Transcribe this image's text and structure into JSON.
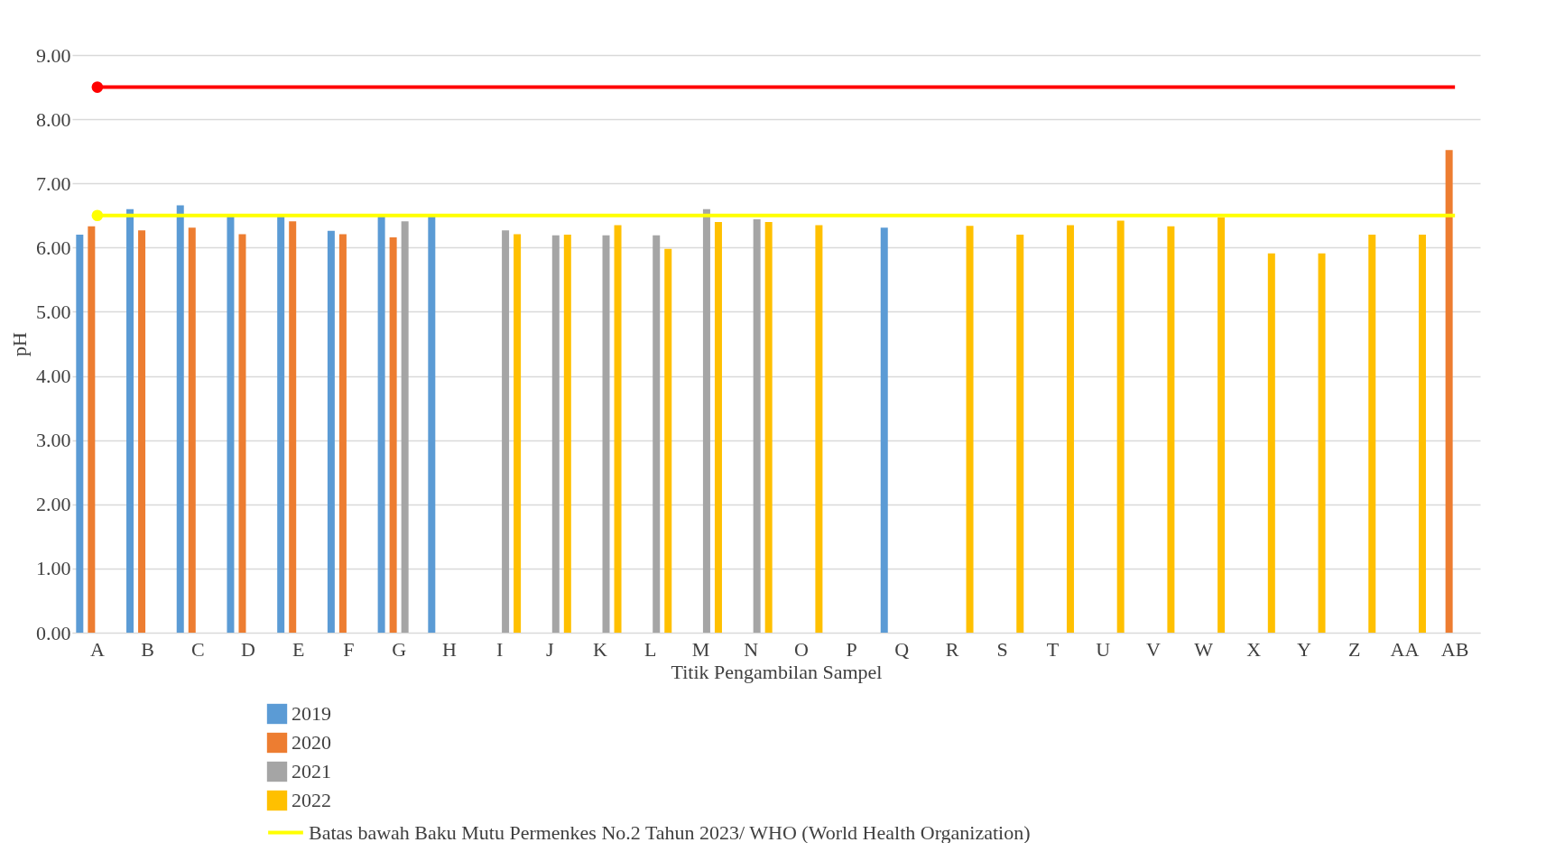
{
  "chart_data": {
    "type": "bar",
    "xlabel": "Titik Pengambilan Sampel",
    "ylabel": "pH",
    "categories": [
      "A",
      "B",
      "C",
      "D",
      "E",
      "F",
      "G",
      "H",
      "I",
      "J",
      "K",
      "L",
      "M",
      "N",
      "O",
      "P",
      "Q",
      "R",
      "S",
      "T",
      "U",
      "V",
      "W",
      "X",
      "Y",
      "Z",
      "AA",
      "AB"
    ],
    "series": [
      {
        "name": "2019",
        "color": "#5b9bd5",
        "values": [
          6.2,
          6.6,
          6.66,
          6.5,
          6.5,
          6.26,
          6.5,
          6.5,
          null,
          null,
          null,
          null,
          null,
          null,
          null,
          null,
          6.31,
          null,
          null,
          null,
          null,
          null,
          null,
          null,
          null,
          null,
          null,
          null
        ]
      },
      {
        "name": "2020",
        "color": "#ed7d31",
        "values": [
          6.33,
          6.27,
          6.31,
          6.21,
          6.41,
          6.21,
          6.16,
          null,
          null,
          null,
          null,
          null,
          null,
          null,
          null,
          null,
          null,
          null,
          null,
          null,
          null,
          null,
          null,
          null,
          null,
          null,
          null,
          7.52
        ]
      },
      {
        "name": "2021",
        "color": "#a5a5a5",
        "values": [
          null,
          null,
          null,
          null,
          null,
          null,
          6.41,
          null,
          6.27,
          6.19,
          6.19,
          6.19,
          6.6,
          6.44,
          null,
          null,
          null,
          null,
          null,
          null,
          null,
          null,
          null,
          null,
          null,
          null,
          null,
          null
        ]
      },
      {
        "name": "2022",
        "color": "#ffc000",
        "values": [
          null,
          null,
          null,
          null,
          null,
          null,
          null,
          null,
          6.21,
          6.2,
          6.35,
          5.98,
          6.4,
          6.4,
          6.35,
          null,
          null,
          6.34,
          6.2,
          6.35,
          6.42,
          6.33,
          6.47,
          5.91,
          5.91,
          6.2,
          6.2,
          null
        ]
      },
      {
        "type": "line",
        "color": "#ff0000",
        "values": [
          8.5,
          8.5,
          8.5,
          8.5,
          8.5,
          8.5,
          8.5,
          8.5,
          8.5,
          8.5,
          8.5,
          8.5,
          8.5,
          8.5,
          8.5,
          8.5,
          8.5,
          8.5,
          8.5,
          8.5,
          8.5,
          8.5,
          8.5,
          8.5,
          8.5,
          8.5,
          8.5,
          8.5
        ]
      },
      {
        "type": "line",
        "name": "Batas bawah Baku Mutu Permenkes No.2 Tahun 2023/  WHO (World Health Organization)",
        "color": "#ffff00",
        "values": [
          6.5,
          6.5,
          6.5,
          6.5,
          6.5,
          6.5,
          6.5,
          6.5,
          6.5,
          6.5,
          6.5,
          6.5,
          6.5,
          6.5,
          6.5,
          6.5,
          6.5,
          6.5,
          6.5,
          6.5,
          6.5,
          6.5,
          6.5,
          6.5,
          6.5,
          6.5,
          6.5,
          6.5
        ]
      }
    ],
    "ylim": [
      0,
      9
    ],
    "yticks": [
      {
        "value": 0,
        "label": "0.00"
      },
      {
        "value": 1,
        "label": "1.00"
      },
      {
        "value": 2,
        "label": "2.00"
      },
      {
        "value": 3,
        "label": "3.00"
      },
      {
        "value": 4,
        "label": "4.00"
      },
      {
        "value": 5,
        "label": "5.00"
      },
      {
        "value": 6,
        "label": "6.00"
      },
      {
        "value": 7,
        "label": "7.00"
      },
      {
        "value": 8,
        "label": "8.00"
      },
      {
        "value": 9,
        "label": "9.00"
      }
    ],
    "grid": "y",
    "legend": "bottom left"
  }
}
